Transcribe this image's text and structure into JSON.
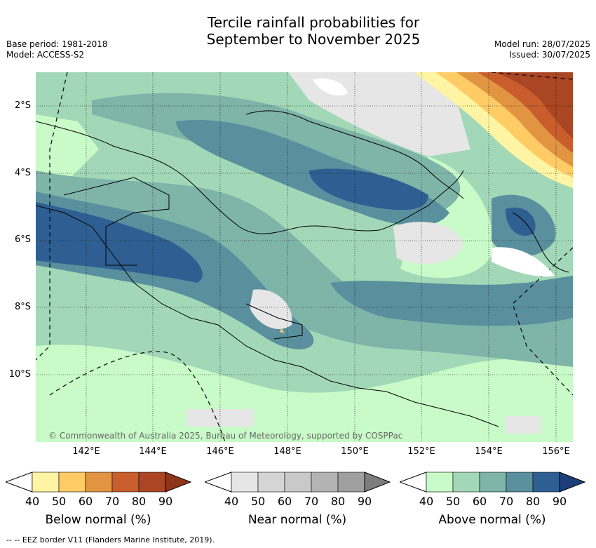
{
  "title_line1": "Tercile rainfall probabilities for",
  "title_line2": "September to November 2025",
  "base_period": "Base period: 1981-2018",
  "model": "Model: ACCESS-S2",
  "model_run": "Model run: 28/07/2025",
  "issued": "Issued: 30/07/2025",
  "lat_labels": [
    "2°S",
    "4°S",
    "6°S",
    "8°S",
    "10°S"
  ],
  "lon_labels": [
    "142°E",
    "144°E",
    "146°E",
    "148°E",
    "150°E",
    "152°E",
    "154°E",
    "156°E"
  ],
  "copyright": "© Commonwealth of Australia 2025, Bureau of Meteorology, supported by COSPPac",
  "footer": "-- -- EEZ border V11 (Flanders Marine Institute, 2019).",
  "colorbars": [
    {
      "title": "Below normal (%)",
      "ticks": [
        "40",
        "50",
        "60",
        "70",
        "80",
        "90"
      ],
      "colors": [
        "#fff4a3",
        "#fecb65",
        "#e19442",
        "#c95d2c",
        "#aa4623",
        "#8e3418"
      ]
    },
    {
      "title": "Near normal (%)",
      "ticks": [
        "40",
        "50",
        "60",
        "70",
        "80",
        "90"
      ],
      "colors": [
        "#e6e6e6",
        "#d5d5d5",
        "#c9c9c9",
        "#b3b3b3",
        "#9f9f9f",
        "#7d7d7d"
      ]
    },
    {
      "title": "Above normal (%)",
      "ticks": [
        "40",
        "50",
        "60",
        "70",
        "80",
        "90"
      ],
      "colors": [
        "#c8fbc8",
        "#a2d8b7",
        "#7fb4a9",
        "#5a8f9e",
        "#2f5f92",
        "#1c3f7a"
      ]
    }
  ]
}
